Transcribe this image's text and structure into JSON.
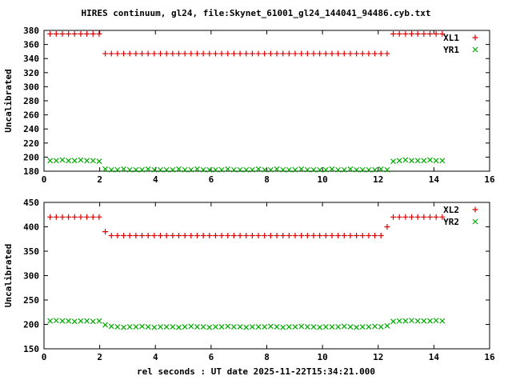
{
  "title": "HIRES continuum, gl24, file:Skynet_61001_gl24_144041_94486.cyb.txt",
  "xlabel": "rel seconds : UT date 2025-11-22T15:34:21.000",
  "colors": {
    "red": "#dd0000",
    "green": "#00aa00",
    "axis": "#000000"
  },
  "chart_data": [
    {
      "type": "scatter",
      "ylabel": "Uncalibrated",
      "xlim": [
        0,
        16
      ],
      "ylim": [
        180,
        380
      ],
      "xticks": [
        0,
        2,
        4,
        6,
        8,
        10,
        12,
        14,
        16
      ],
      "yticks": [
        180,
        200,
        220,
        240,
        260,
        280,
        300,
        320,
        340,
        360,
        380
      ],
      "x": [
        0.22,
        0.44,
        0.66,
        0.88,
        1.1,
        1.32,
        1.54,
        1.76,
        1.98,
        2.2,
        2.42,
        2.64,
        2.86,
        3.08,
        3.3,
        3.52,
        3.74,
        3.96,
        4.18,
        4.4,
        4.62,
        4.84,
        5.06,
        5.28,
        5.5,
        5.72,
        5.94,
        6.16,
        6.38,
        6.6,
        6.82,
        7.04,
        7.26,
        7.48,
        7.7,
        7.92,
        8.14,
        8.36,
        8.58,
        8.8,
        9.02,
        9.24,
        9.46,
        9.68,
        9.9,
        10.12,
        10.34,
        10.56,
        10.78,
        11.0,
        11.22,
        11.44,
        11.66,
        11.88,
        12.1,
        12.32,
        12.54,
        12.76,
        12.98,
        13.2,
        13.42,
        13.64,
        13.86,
        14.08,
        14.3
      ],
      "series": [
        {
          "name": "XL1",
          "marker": "plus",
          "color": "#dd0000",
          "values": [
            375,
            375,
            375,
            375,
            375,
            375,
            375,
            375,
            375,
            347,
            347,
            347,
            347,
            347,
            347,
            347,
            347,
            347,
            347,
            347,
            347,
            347,
            347,
            347,
            347,
            347,
            347,
            347,
            347,
            347,
            347,
            347,
            347,
            347,
            347,
            347,
            347,
            347,
            347,
            347,
            347,
            347,
            347,
            347,
            347,
            347,
            347,
            347,
            347,
            347,
            347,
            347,
            347,
            347,
            347,
            347,
            375,
            375,
            375,
            375,
            375,
            375,
            375,
            375,
            375
          ]
        },
        {
          "name": "YR1",
          "marker": "cross",
          "color": "#00aa00",
          "values": [
            195,
            195,
            196,
            195,
            195,
            196,
            195,
            195,
            194,
            183,
            182,
            182,
            183,
            182,
            182,
            182,
            183,
            182,
            182,
            182,
            182,
            183,
            182,
            182,
            183,
            182,
            182,
            182,
            182,
            183,
            182,
            182,
            182,
            182,
            183,
            182,
            182,
            183,
            182,
            182,
            182,
            183,
            182,
            182,
            182,
            182,
            183,
            182,
            182,
            183,
            182,
            182,
            182,
            182,
            183,
            182,
            194,
            195,
            196,
            195,
            195,
            195,
            196,
            195,
            195
          ]
        }
      ]
    },
    {
      "type": "scatter",
      "ylabel": "Uncalibrated",
      "xlim": [
        0,
        16
      ],
      "ylim": [
        150,
        450
      ],
      "xticks": [
        0,
        2,
        4,
        6,
        8,
        10,
        12,
        14,
        16
      ],
      "yticks": [
        150,
        200,
        250,
        300,
        350,
        400,
        450
      ],
      "x": [
        0.22,
        0.44,
        0.66,
        0.88,
        1.1,
        1.32,
        1.54,
        1.76,
        1.98,
        2.2,
        2.42,
        2.64,
        2.86,
        3.08,
        3.3,
        3.52,
        3.74,
        3.96,
        4.18,
        4.4,
        4.62,
        4.84,
        5.06,
        5.28,
        5.5,
        5.72,
        5.94,
        6.16,
        6.38,
        6.6,
        6.82,
        7.04,
        7.26,
        7.48,
        7.7,
        7.92,
        8.14,
        8.36,
        8.58,
        8.8,
        9.02,
        9.24,
        9.46,
        9.68,
        9.9,
        10.12,
        10.34,
        10.56,
        10.78,
        11.0,
        11.22,
        11.44,
        11.66,
        11.88,
        12.1,
        12.32,
        12.54,
        12.76,
        12.98,
        13.2,
        13.42,
        13.64,
        13.86,
        14.08,
        14.3
      ],
      "series": [
        {
          "name": "XL2",
          "marker": "plus",
          "color": "#dd0000",
          "values": [
            420,
            420,
            420,
            420,
            420,
            420,
            420,
            420,
            420,
            390,
            382,
            382,
            382,
            382,
            382,
            382,
            382,
            382,
            382,
            382,
            382,
            382,
            382,
            382,
            382,
            382,
            382,
            382,
            382,
            382,
            382,
            382,
            382,
            382,
            382,
            382,
            382,
            382,
            382,
            382,
            382,
            382,
            382,
            382,
            382,
            382,
            382,
            382,
            382,
            382,
            382,
            382,
            382,
            382,
            382,
            400,
            420,
            420,
            420,
            420,
            420,
            420,
            420,
            420,
            420
          ]
        },
        {
          "name": "YR2",
          "marker": "cross",
          "color": "#00aa00",
          "values": [
            207,
            208,
            207,
            207,
            206,
            207,
            207,
            206,
            207,
            199,
            196,
            195,
            194,
            195,
            195,
            196,
            195,
            194,
            195,
            195,
            195,
            194,
            195,
            196,
            195,
            195,
            194,
            195,
            195,
            196,
            195,
            195,
            194,
            195,
            195,
            195,
            196,
            195,
            194,
            195,
            195,
            196,
            195,
            195,
            194,
            195,
            195,
            195,
            196,
            195,
            194,
            195,
            195,
            196,
            195,
            197,
            206,
            207,
            207,
            208,
            207,
            207,
            207,
            208,
            207
          ]
        }
      ]
    }
  ]
}
